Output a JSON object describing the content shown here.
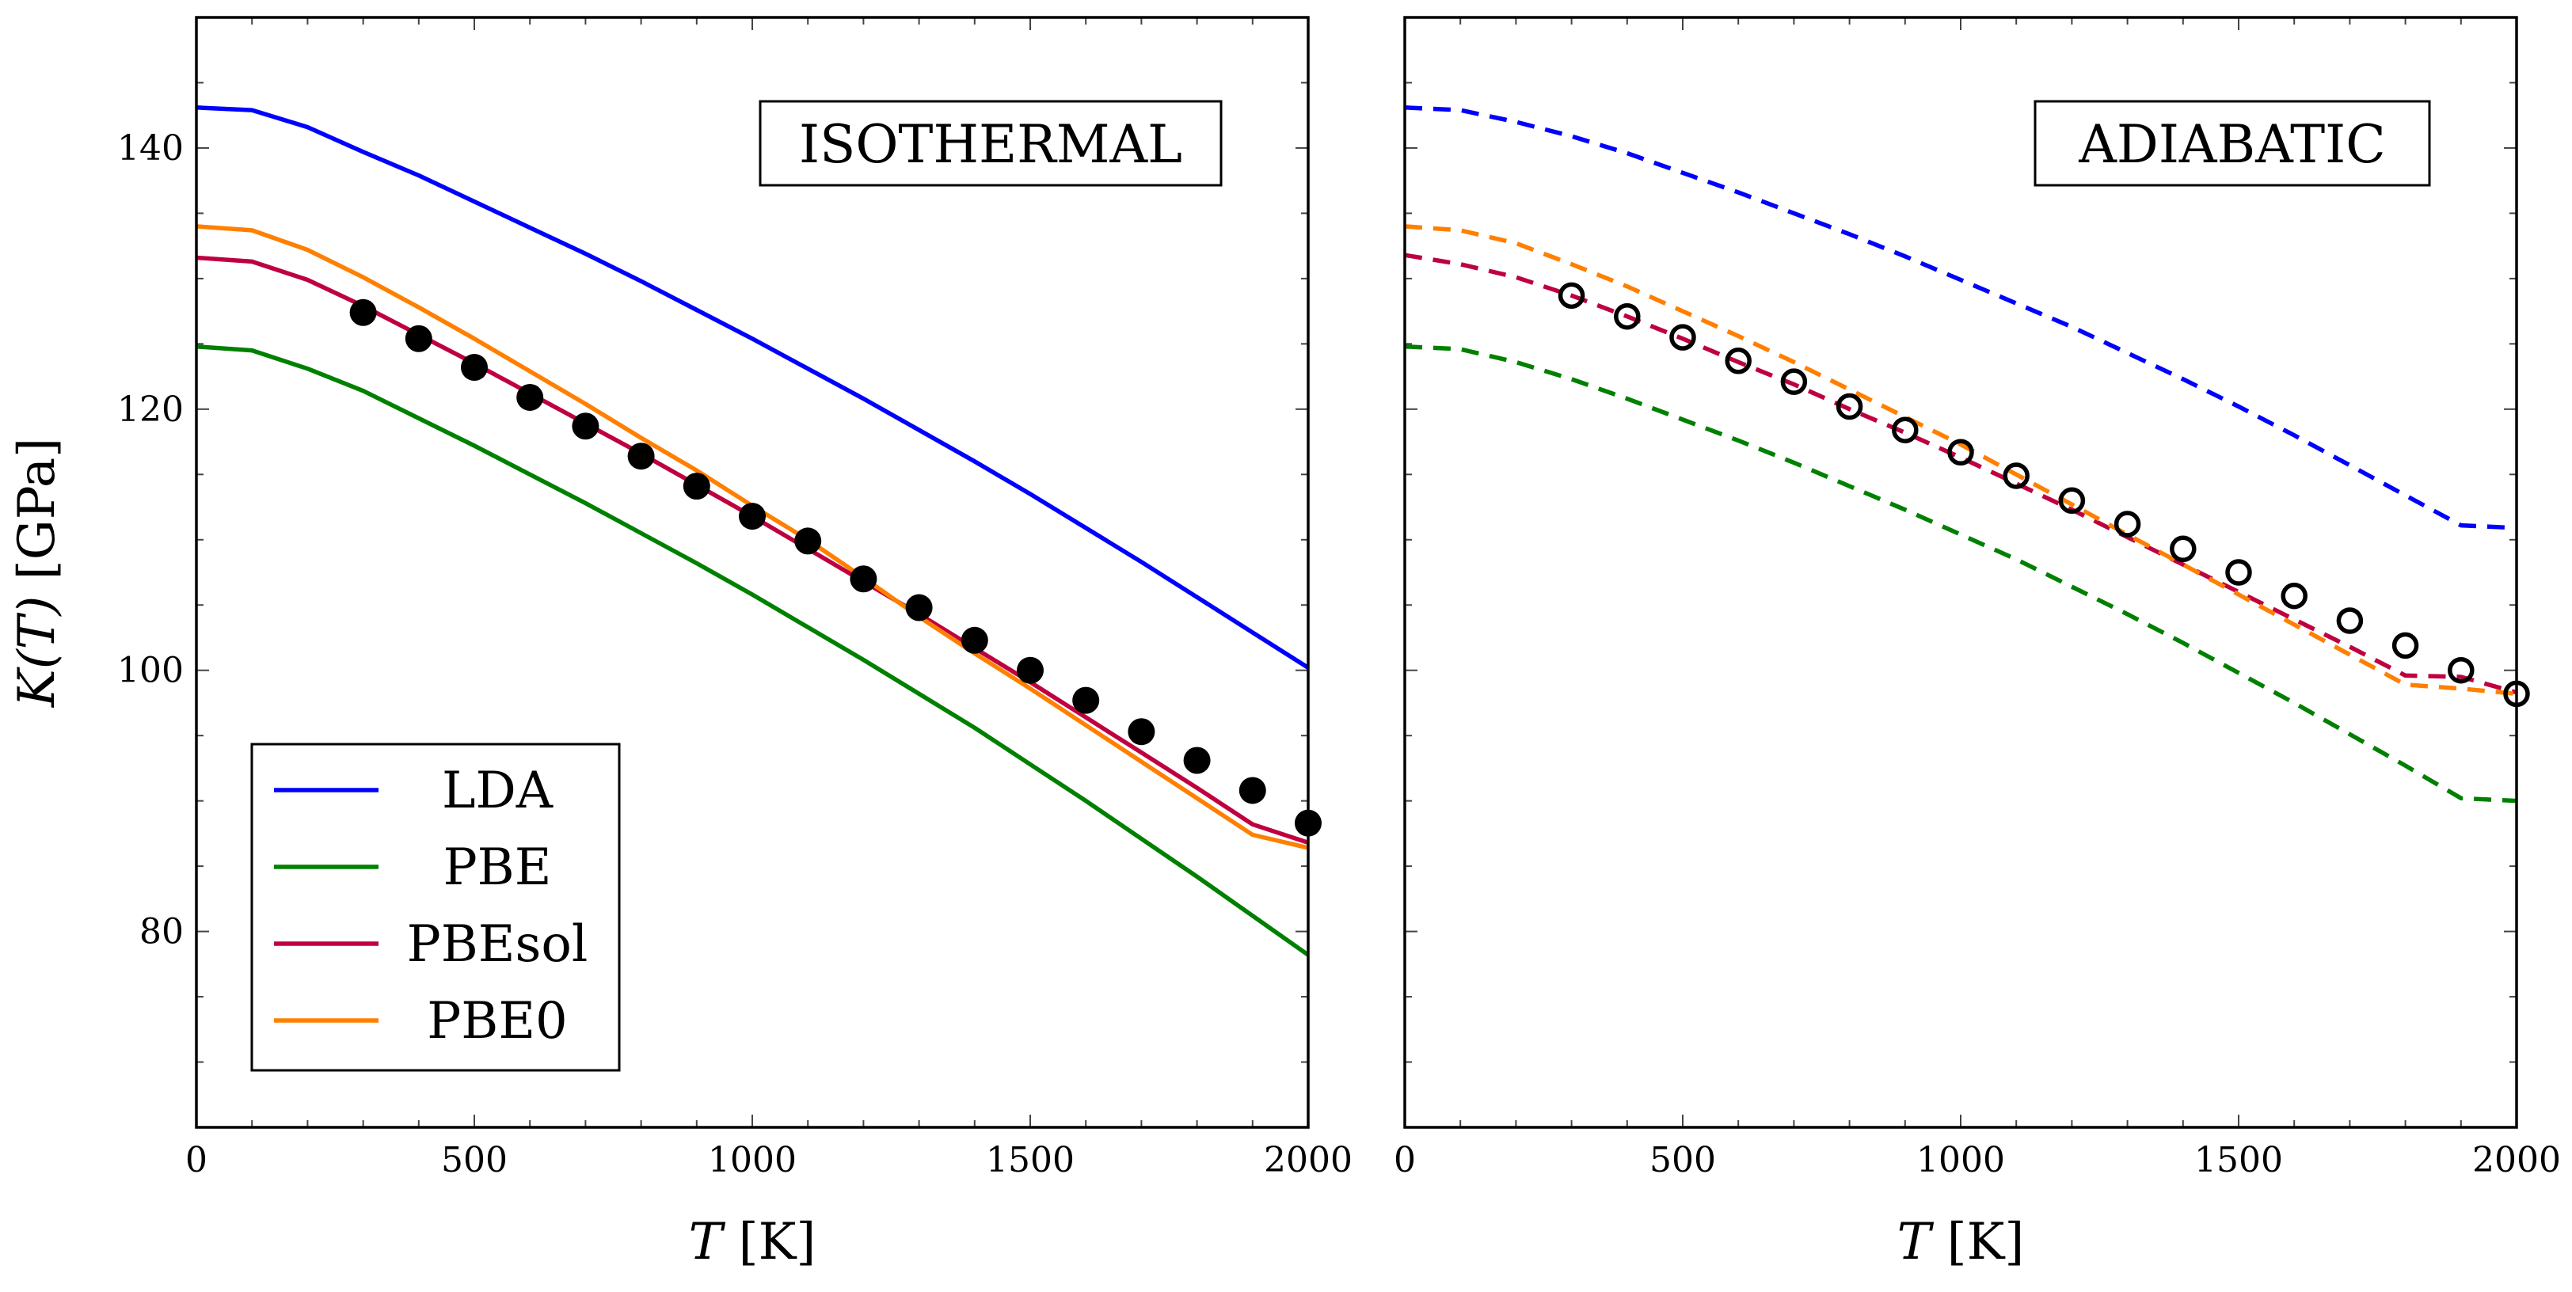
{
  "figure": {
    "ylabel": "K(T) [GPa]",
    "xlabel": "T [K]"
  },
  "legend": {
    "entries": [
      {
        "name": "LDA",
        "color": "#0000ff"
      },
      {
        "name": "PBE",
        "color": "#008000"
      },
      {
        "name": "PBEsol",
        "color": "#bf0040"
      },
      {
        "name": "PBE0",
        "color": "#ff8000"
      }
    ]
  },
  "chart_data": [
    {
      "type": "line",
      "title": "ISOTHERMAL",
      "xlabel": "T [K]",
      "ylabel": "K(T) [GPa]",
      "xlim": [
        0,
        2000
      ],
      "ylim": [
        65,
        150
      ],
      "xticks": [
        0,
        500,
        1000,
        1500,
        2000
      ],
      "yticks": [
        80,
        100,
        120,
        140
      ],
      "line_style": "solid",
      "series": [
        {
          "name": "LDA",
          "color": "#0000ff",
          "x": [
            0,
            100,
            200,
            300,
            400,
            500,
            600,
            700,
            800,
            900,
            1000,
            1100,
            1200,
            1300,
            1400,
            1500,
            1600,
            1700,
            1800,
            1900,
            2000
          ],
          "y": [
            143.1,
            142.9,
            141.6,
            139.7,
            137.9,
            135.9,
            133.9,
            131.9,
            129.8,
            127.6,
            125.4,
            123.1,
            120.8,
            118.4,
            116.0,
            113.5,
            110.9,
            108.3,
            105.6,
            102.9,
            100.2
          ]
        },
        {
          "name": "PBE",
          "color": "#008000",
          "x": [
            0,
            100,
            200,
            300,
            400,
            500,
            600,
            700,
            800,
            900,
            1000,
            1100,
            1200,
            1300,
            1400,
            1500,
            1600,
            1700,
            1800,
            1900,
            2000
          ],
          "y": [
            124.8,
            124.5,
            123.1,
            121.4,
            119.3,
            117.2,
            115.0,
            112.8,
            110.5,
            108.2,
            105.8,
            103.3,
            100.8,
            98.2,
            95.6,
            92.8,
            90.0,
            87.1,
            84.2,
            81.2,
            78.2
          ]
        },
        {
          "name": "PBEsol",
          "color": "#bf0040",
          "x": [
            0,
            100,
            200,
            300,
            400,
            500,
            600,
            700,
            800,
            900,
            1000,
            1100,
            1200,
            1300,
            1400,
            1500,
            1600,
            1700,
            1800,
            1900,
            2000
          ],
          "y": [
            131.6,
            131.3,
            129.9,
            127.9,
            125.7,
            123.5,
            121.2,
            118.9,
            116.6,
            114.2,
            111.8,
            109.3,
            106.8,
            104.3,
            101.7,
            99.1,
            96.4,
            93.7,
            91.0,
            88.2,
            86.8
          ]
        },
        {
          "name": "PBE0",
          "color": "#ff8000",
          "x": [
            0,
            100,
            200,
            300,
            400,
            500,
            600,
            700,
            800,
            900,
            1000,
            1100,
            1200,
            1300,
            1400,
            1500,
            1600,
            1700,
            1800,
            1900,
            2000
          ],
          "y": [
            134.0,
            133.7,
            132.2,
            130.1,
            127.8,
            125.4,
            122.9,
            120.4,
            117.8,
            115.3,
            112.6,
            110.0,
            107.1,
            104.1,
            101.3,
            98.6,
            95.8,
            93.0,
            90.2,
            87.4,
            86.4
          ]
        }
      ],
      "experiment": {
        "marker": "filled-circle",
        "x": [
          300,
          400,
          500,
          600,
          700,
          800,
          900,
          1000,
          1100,
          1200,
          1300,
          1400,
          1500,
          1600,
          1700,
          1800,
          1900,
          2000
        ],
        "y": [
          127.4,
          125.4,
          123.2,
          120.9,
          118.7,
          116.4,
          114.1,
          111.8,
          109.9,
          107.0,
          104.8,
          102.3,
          100.0,
          97.7,
          95.3,
          93.1,
          90.8,
          88.3
        ]
      }
    },
    {
      "type": "line",
      "title": "ADIABATIC",
      "xlabel": "T [K]",
      "ylabel": "",
      "xlim": [
        0,
        2000
      ],
      "ylim": [
        65,
        150
      ],
      "xticks": [
        0,
        500,
        1000,
        1500,
        2000
      ],
      "yticks": [],
      "line_style": "dashed",
      "series": [
        {
          "name": "LDA",
          "color": "#0000ff",
          "x": [
            0,
            100,
            200,
            300,
            400,
            500,
            600,
            700,
            800,
            900,
            1000,
            1100,
            1200,
            1300,
            1400,
            1500,
            1600,
            1700,
            1800,
            1900,
            2000
          ],
          "y": [
            143.1,
            142.9,
            142.0,
            140.9,
            139.6,
            138.1,
            136.6,
            135.0,
            133.4,
            131.7,
            129.9,
            128.1,
            126.3,
            124.3,
            122.3,
            120.2,
            118.0,
            115.7,
            113.4,
            111.1,
            110.9
          ]
        },
        {
          "name": "PBE",
          "color": "#008000",
          "x": [
            0,
            100,
            200,
            300,
            400,
            500,
            600,
            700,
            800,
            900,
            1000,
            1100,
            1200,
            1300,
            1400,
            1500,
            1600,
            1700,
            1800,
            1900,
            2000
          ],
          "y": [
            124.8,
            124.6,
            123.6,
            122.3,
            120.8,
            119.2,
            117.6,
            115.9,
            114.1,
            112.3,
            110.4,
            108.5,
            106.4,
            104.3,
            102.1,
            99.8,
            97.5,
            95.1,
            92.7,
            90.2,
            90.0
          ]
        },
        {
          "name": "PBEsol",
          "color": "#bf0040",
          "x": [
            0,
            100,
            200,
            300,
            400,
            500,
            600,
            700,
            800,
            900,
            1000,
            1100,
            1200,
            1300,
            1400,
            1500,
            1600,
            1700,
            1800,
            1900,
            2000
          ],
          "y": [
            131.8,
            131.1,
            130.1,
            128.7,
            127.1,
            125.4,
            123.6,
            121.9,
            120.0,
            118.2,
            116.3,
            114.3,
            112.3,
            110.2,
            108.1,
            106.0,
            103.9,
            101.8,
            99.6,
            99.5,
            98.3
          ]
        },
        {
          "name": "PBE0",
          "color": "#ff8000",
          "x": [
            0,
            100,
            200,
            300,
            400,
            500,
            600,
            700,
            800,
            900,
            1000,
            1100,
            1200,
            1300,
            1400,
            1500,
            1600,
            1700,
            1800,
            1900,
            2000
          ],
          "y": [
            134.0,
            133.7,
            132.7,
            131.1,
            129.4,
            127.5,
            125.6,
            123.6,
            121.5,
            119.4,
            117.3,
            115.0,
            112.7,
            110.4,
            108.1,
            105.8,
            103.5,
            101.2,
            98.9,
            98.6,
            98.2
          ]
        }
      ],
      "experiment": {
        "marker": "open-circle",
        "x": [
          300,
          400,
          500,
          600,
          700,
          800,
          900,
          1000,
          1100,
          1200,
          1300,
          1400,
          1500,
          1600,
          1700,
          1800,
          1900,
          2000
        ],
        "y": [
          128.7,
          127.1,
          125.5,
          123.7,
          122.1,
          120.2,
          118.4,
          116.7,
          114.9,
          113.0,
          111.2,
          109.3,
          107.5,
          105.7,
          103.8,
          101.9,
          100.0,
          98.2
        ]
      }
    }
  ]
}
